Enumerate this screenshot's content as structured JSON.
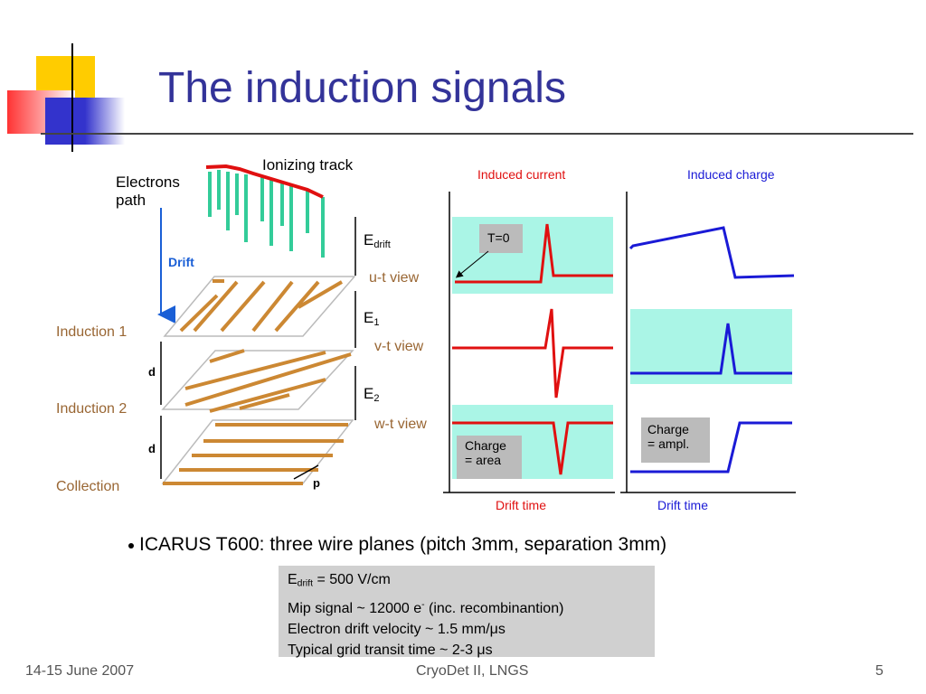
{
  "header": {
    "title": "The induction signals"
  },
  "diagram": {
    "track_label": "Ionizing track",
    "electrons_label": [
      "Electrons",
      "path"
    ],
    "drift_label": "Drift",
    "planes": [
      "Induction 1",
      "Induction 2",
      "Collection"
    ],
    "gap_labels": [
      "d",
      "d"
    ],
    "pitch_label": "p",
    "fields": [
      {
        "symbol": "E",
        "subscript": "drift"
      },
      {
        "symbol": "E",
        "subscript": "1"
      },
      {
        "symbol": "E",
        "subscript": "2"
      }
    ],
    "views": [
      "u-t view",
      "v-t view",
      "w-t view"
    ],
    "current_title": "Induced current",
    "charge_title": "Induced charge",
    "t0_label": "T=0",
    "charge_area": [
      "Charge",
      "= area"
    ],
    "charge_ampl": [
      "Charge",
      "= ampl."
    ],
    "current_xlabel": "Drift time",
    "charge_xlabel": "Drift time"
  },
  "bullet": "ICARUS T600: three wire planes (pitch 3mm, separation 3mm)",
  "info_box": {
    "line1": {
      "symbol": "E",
      "subscript": "drift",
      "text": " = 500 V/cm"
    },
    "line2": {
      "text": "Mip signal ~ 12000 e",
      "superscript": "-",
      "rest": " (inc. recombinantion)"
    },
    "line3": "Electron drift velocity ~ 1.5 mm/μs",
    "line4": "Typical grid transit time ~ 2-3 μs"
  },
  "footer": {
    "date": "14-15 June 2007",
    "event": "CryoDet II, LNGS",
    "page": "5"
  }
}
